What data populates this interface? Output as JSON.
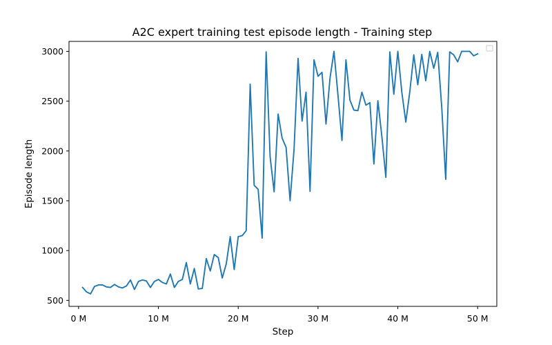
{
  "chart_data": {
    "type": "line",
    "title": "A2C expert training test episode length - Training step",
    "xlabel": "Step",
    "ylabel": "Episode length",
    "xlim": [
      -1.2,
      52.4
    ],
    "ylim": [
      440,
      3100
    ],
    "x_ticks": [
      0,
      10,
      20,
      30,
      40,
      50
    ],
    "x_tick_labels": [
      "0 M",
      "10 M",
      "20 M",
      "30 M",
      "40 M",
      "50 M"
    ],
    "y_ticks": [
      500,
      1000,
      1500,
      2000,
      2500,
      3000
    ],
    "y_tick_labels": [
      "500",
      "1000",
      "1500",
      "2000",
      "2500",
      "3000"
    ],
    "grid": false,
    "legend": "top-right",
    "series": [
      {
        "color": "#1f77b4",
        "x": [
          0.5,
          1.0,
          1.5,
          2.0,
          2.5,
          3.0,
          3.5,
          4.0,
          4.5,
          5.0,
          5.5,
          6.0,
          6.5,
          7.0,
          7.5,
          8.0,
          8.5,
          9.0,
          9.5,
          10.0,
          10.5,
          11.0,
          11.5,
          12.0,
          12.5,
          13.0,
          13.5,
          14.0,
          14.5,
          15.0,
          15.5,
          16.0,
          16.5,
          17.0,
          17.5,
          18.0,
          18.5,
          19.0,
          19.5,
          20.0,
          20.5,
          21.0,
          21.5,
          22.0,
          22.5,
          23.0,
          23.5,
          24.0,
          24.5,
          25.0,
          25.5,
          26.0,
          26.5,
          27.0,
          27.5,
          28.0,
          28.5,
          29.0,
          29.5,
          30.0,
          30.5,
          31.0,
          31.5,
          32.0,
          32.5,
          33.0,
          33.5,
          34.0,
          34.5,
          35.0,
          35.5,
          36.0,
          36.5,
          37.0,
          37.5,
          38.0,
          38.5,
          39.0,
          39.5,
          40.0,
          40.5,
          41.0,
          41.5,
          42.0,
          42.5,
          43.0,
          43.5,
          44.0,
          44.5,
          45.0,
          45.5,
          46.0,
          46.5,
          47.0,
          47.5,
          48.0,
          48.5,
          49.0,
          49.5,
          50.0
        ],
        "y": [
          630,
          585,
          565,
          640,
          655,
          655,
          635,
          630,
          660,
          635,
          625,
          645,
          705,
          610,
          690,
          705,
          695,
          630,
          690,
          710,
          680,
          665,
          765,
          630,
          690,
          710,
          880,
          665,
          820,
          615,
          620,
          920,
          795,
          960,
          930,
          725,
          865,
          1140,
          810,
          1140,
          1150,
          1200,
          2670,
          1655,
          1615,
          1125,
          2995,
          1940,
          1590,
          2370,
          2130,
          2035,
          1500,
          2020,
          2930,
          2300,
          2590,
          1595,
          2915,
          2750,
          2790,
          2270,
          2730,
          3000,
          2560,
          2105,
          2915,
          2510,
          2410,
          2405,
          2590,
          2460,
          2485,
          1870,
          2505,
          2145,
          1735,
          2995,
          2570,
          3000,
          2590,
          2290,
          2595,
          2965,
          2665,
          2970,
          2705,
          3000,
          2830,
          2990,
          2440,
          1715,
          2995,
          2965,
          2895,
          3000,
          3000,
          3000,
          2955,
          2975
        ]
      }
    ]
  }
}
